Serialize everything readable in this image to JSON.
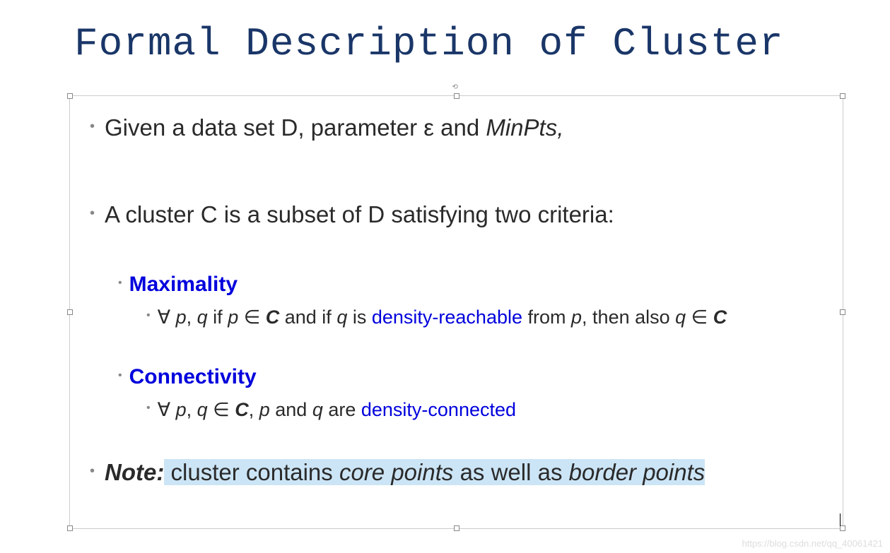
{
  "title": "Formal Description of Cluster",
  "bullets": {
    "line1_pre": "Given a data set D, parameter ε and ",
    "line1_italic": "MinPts,",
    "line2": "A cluster C is a subset of D satisfying two criteria:"
  },
  "maximality": {
    "heading": "Maximality",
    "detail_1": "∀  ",
    "detail_p": "p",
    "detail_2": ", ",
    "detail_q": "q",
    "detail_3": " if ",
    "detail_p2": "p",
    "detail_4": " ∈ ",
    "detail_C": "C",
    "detail_5": " and if ",
    "detail_q2": "q",
    "detail_6": " is ",
    "detail_blue": "density-reachable",
    "detail_7": " from ",
    "detail_p3": "p",
    "detail_8": ", then also ",
    "detail_q3": "q",
    "detail_9": " ∈ ",
    "detail_C2": "C"
  },
  "connectivity": {
    "heading": "Connectivity",
    "detail_1": "∀  ",
    "detail_p": "p",
    "detail_2": ", ",
    "detail_q": "q",
    "detail_3": " ∈ ",
    "detail_C": "C",
    "detail_4": ", ",
    "detail_p2": "p",
    "detail_5": " and ",
    "detail_q2": "q",
    "detail_6": " are ",
    "detail_blue": "density-connected"
  },
  "note": {
    "label": "Note:",
    "text_1": " cluster contains ",
    "text_italic1": "core points",
    "text_2": " as well as ",
    "text_italic2": "border points"
  },
  "watermark": "https://blog.csdn.net/qq_40061421"
}
